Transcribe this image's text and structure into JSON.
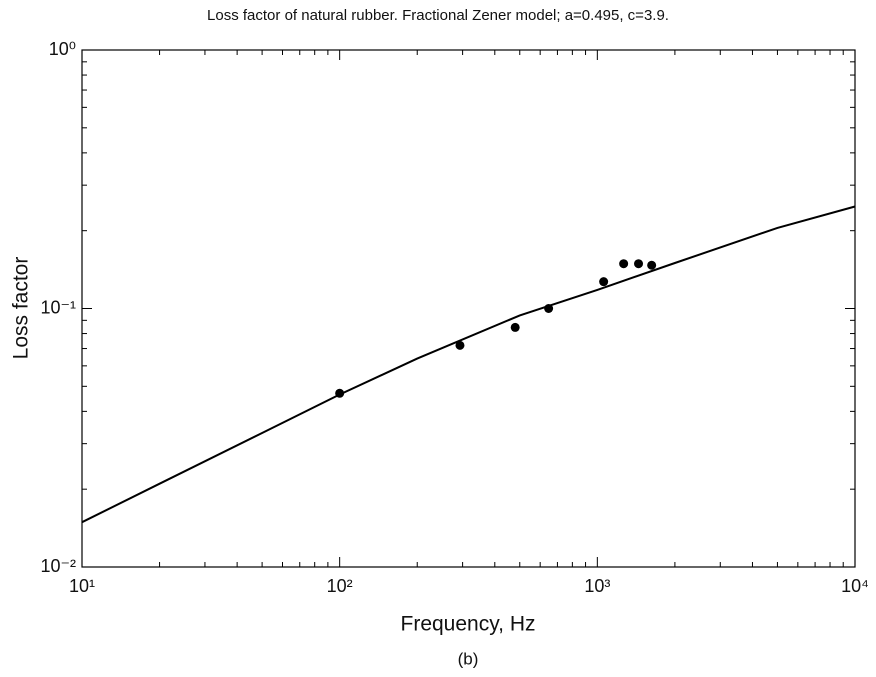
{
  "chart_data": {
    "type": "line",
    "title": "Loss factor of natural rubber. Fractional Zener model; a=0.495, c=3.9.",
    "xlabel": "Frequency, Hz",
    "ylabel": "Loss factor",
    "caption": "(b)",
    "xscale": "log",
    "yscale": "log",
    "xlim": [
      10,
      10000
    ],
    "ylim": [
      0.01,
      1
    ],
    "xticks": [
      {
        "value": 10,
        "label": "10¹"
      },
      {
        "value": 100,
        "label": "10²"
      },
      {
        "value": 1000,
        "label": "10³"
      },
      {
        "value": 10000,
        "label": "10⁴"
      }
    ],
    "yticks": [
      {
        "value": 0.01,
        "label": "10⁻²"
      },
      {
        "value": 0.1,
        "label": "10⁻¹"
      },
      {
        "value": 1,
        "label": "10⁰"
      }
    ],
    "series": [
      {
        "style": "line",
        "color": "#000000",
        "x": [
          10,
          20,
          50,
          100,
          200,
          500,
          1000,
          2000,
          5000,
          10000
        ],
        "values": [
          0.0149,
          0.021,
          0.033,
          0.0465,
          0.064,
          0.094,
          0.118,
          0.15,
          0.205,
          0.248
        ]
      },
      {
        "style": "markers",
        "color": "#000000",
        "x": [
          100,
          293,
          480,
          647,
          1058,
          1265,
          1445,
          1625
        ],
        "values": [
          0.047,
          0.072,
          0.0845,
          0.1,
          0.127,
          0.149,
          0.149,
          0.147
        ]
      }
    ]
  }
}
